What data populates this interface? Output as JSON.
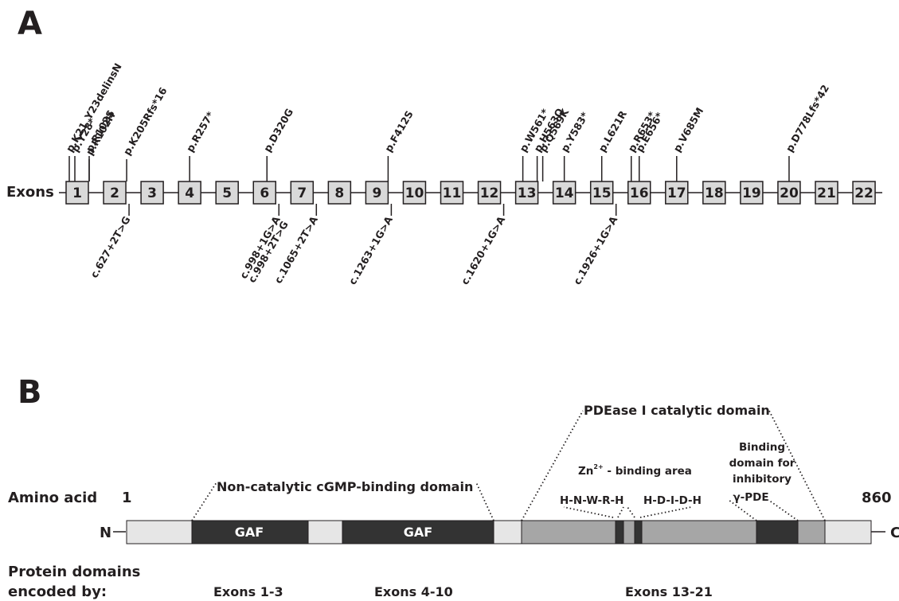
{
  "panel_a": {
    "letter": "A",
    "row_label": "Exons",
    "exons": [
      "1",
      "2",
      "3",
      "4",
      "5",
      "6",
      "7",
      "8",
      "9",
      "10",
      "11",
      "12",
      "13",
      "14",
      "15",
      "16",
      "17",
      "18",
      "19",
      "20",
      "21",
      "22"
    ],
    "mutations_above": [
      {
        "label": "p.K21_Y23delinsN",
        "exon_index": 0,
        "offset": -10,
        "level": 3
      },
      {
        "label": "p.Y28*",
        "exon_index": 0,
        "offset": -3,
        "level": 1
      },
      {
        "label": "p.R102S",
        "exon_index": 0,
        "offset": 15,
        "level": 1
      },
      {
        "label": "p.R102H",
        "exon_index": 0,
        "offset": 15,
        "level": 2
      },
      {
        "label": "p.K205Rfs*16",
        "exon_index": 1,
        "offset": 15,
        "level": 2
      },
      {
        "label": "p.R257*",
        "exon_index": 3,
        "offset": 0,
        "level": 1
      },
      {
        "label": "p.D320G",
        "exon_index": 5,
        "offset": 3,
        "level": 1
      },
      {
        "label": "p.F412S",
        "exon_index": 8,
        "offset": 14,
        "level": 1
      },
      {
        "label": "p.W561*",
        "exon_index": 12,
        "offset": -5,
        "level": 1
      },
      {
        "label": "p.H563Q",
        "exon_index": 12,
        "offset": 13,
        "level": 1
      },
      {
        "label": "p.Q569K",
        "exon_index": 12,
        "offset": 20,
        "level": 1
      },
      {
        "label": "p.Y583*",
        "exon_index": 13,
        "offset": 0,
        "level": 1
      },
      {
        "label": "p.L621R",
        "exon_index": 14,
        "offset": 0,
        "level": 1
      },
      {
        "label": "p.R653*",
        "exon_index": 15,
        "offset": -10,
        "level": 1
      },
      {
        "label": "p.E656*",
        "exon_index": 15,
        "offset": 0,
        "level": 1
      },
      {
        "label": "p.V685M",
        "exon_index": 16,
        "offset": 0,
        "level": 1
      },
      {
        "label": "p.D778Lfs*42",
        "exon_index": 19,
        "offset": 0,
        "level": 1
      }
    ],
    "mutations_below": [
      {
        "label": "c.627+2T>G",
        "exon_index": 1,
        "level": 1
      },
      {
        "label": "c.998+1G>A",
        "exon_index": 5,
        "level": 1
      },
      {
        "label": "c.998+2T>G",
        "exon_index": 5,
        "level": 1
      },
      {
        "label": "c.1065+2T>A",
        "exon_index": 6,
        "level": 1
      },
      {
        "label": "c.1263+1G>A",
        "exon_index": 8,
        "level": 1
      },
      {
        "label": "c.1620+1G>A",
        "exon_index": 11,
        "level": 1
      },
      {
        "label": "c.1926+1G>A",
        "exon_index": 14,
        "level": 1
      }
    ]
  },
  "panel_b": {
    "letter": "B",
    "row_label": "Amino acid",
    "start_aa": "1",
    "end_aa": "860",
    "n_term": "N",
    "c_term": "C",
    "gaf_label": "GAF",
    "noncatalytic_label": "Non-catalytic cGMP-binding domain",
    "catalytic_label": "PDEase I catalytic domain",
    "zn_prefix": "Zn",
    "zn_superscript": "2+",
    "zn_suffix": " - binding area",
    "motif1": "H-N-W-R-H",
    "motif2": "H-D-I-D-H",
    "binding_line1": "Binding",
    "binding_line2": "domain for",
    "binding_line3": "inhibitory",
    "gamma_pde": "γ-PDE",
    "encoded_line1": "Protein domains",
    "encoded_line2": "encoded by:",
    "exon_groups": [
      "Exons 1-3",
      "Exons 4-10",
      "Exons 13-21"
    ],
    "colors": {
      "light": "#e6e6e6",
      "mid": "#a6a6a6",
      "dark": "#333333",
      "exon_box": "#d9d9d9"
    }
  }
}
